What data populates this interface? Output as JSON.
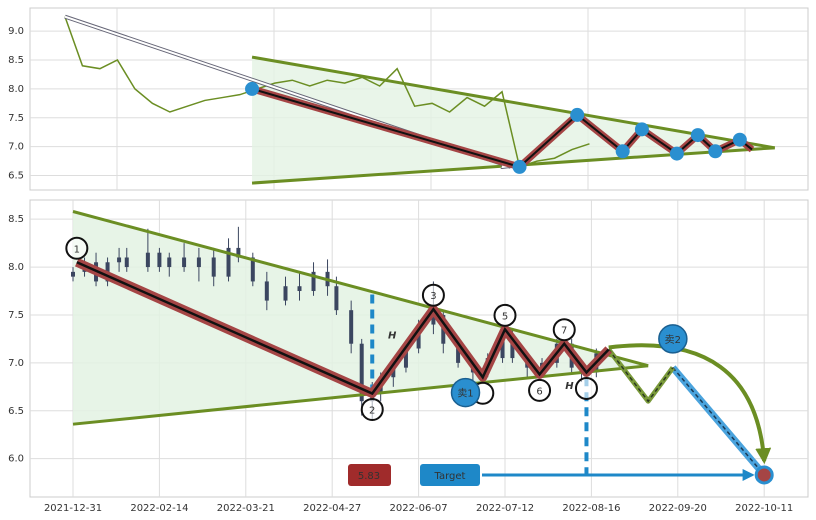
{
  "chart_data": [
    {
      "type": "line",
      "color": "#6b8e23",
      "values": [
        9.25,
        8.4,
        8.35,
        8.5,
        8.0,
        7.75,
        7.6,
        7.7,
        7.8,
        7.85,
        7.9,
        8.0,
        8.1,
        8.15,
        8.05,
        8.15,
        8.1,
        8.2,
        8.05,
        8.35,
        7.7,
        7.75,
        7.6,
        7.85,
        7.7,
        7.95,
        6.65,
        6.75,
        6.8,
        6.95,
        7.05
      ],
      "xlim": [
        -2,
        42.5
      ],
      "ylim": [
        6.25,
        9.4
      ],
      "yticks": [
        {
          "value": 6.5,
          "label": "6.5"
        },
        {
          "value": 7,
          "label": "7.0"
        },
        7.5,
        {
          "value": 8,
          "label": "8.0"
        },
        8.5,
        {
          "value": 9,
          "label": "9.0"
        }
      ],
      "grid": true,
      "triangle": {
        "upper": [
          {
            "x": 10.7,
            "y": 8.55
          },
          {
            "x": 40.6,
            "y": 6.98
          }
        ],
        "lower": [
          {
            "x": 10.7,
            "y": 6.37
          },
          {
            "x": 40.6,
            "y": 6.98
          }
        ]
      },
      "arrow": [
        {
          "x": 0,
          "y": 9.25
        },
        {
          "x": 25.5,
          "y": 6.65
        }
      ],
      "zigzag": [
        {
          "x": 10.7,
          "y": 8.0
        },
        {
          "x": 26.0,
          "y": 6.65
        },
        {
          "x": 29.3,
          "y": 7.55
        },
        {
          "x": 31.9,
          "y": 6.92
        },
        {
          "x": 33.0,
          "y": 7.3
        },
        {
          "x": 35.0,
          "y": 6.88
        },
        {
          "x": 36.2,
          "y": 7.2
        },
        {
          "x": 37.2,
          "y": 6.92
        },
        {
          "x": 38.6,
          "y": 7.12
        },
        {
          "x": 39.3,
          "y": 6.95
        }
      ]
    },
    {
      "type": "candlestick",
      "color": "#3b4660",
      "x": [
        "2021-12-31",
        "2022-01-06",
        "2022-01-12",
        "2022-01-18",
        "2022-01-24",
        "2022-01-28",
        "2022-02-08",
        "2022-02-14",
        "2022-02-18",
        "2022-02-24",
        "2022-03-02",
        "2022-03-08",
        "2022-03-14",
        "2022-03-18",
        "2022-03-24",
        "2022-03-30",
        "2022-04-07",
        "2022-04-13",
        "2022-04-19",
        "2022-04-25",
        "2022-04-29",
        "2022-05-06",
        "2022-05-11",
        "2022-05-16",
        "2022-05-20",
        "2022-05-26",
        "2022-06-01",
        "2022-06-07",
        "2022-06-13",
        "2022-06-17",
        "2022-06-23",
        "2022-06-29",
        "2022-07-05",
        "2022-07-11",
        "2022-07-15",
        "2022-07-21",
        "2022-07-27",
        "2022-08-02",
        "2022-08-08",
        "2022-08-12",
        "2022-08-18"
      ],
      "open": [
        7.9,
        7.95,
        8.05,
        7.85,
        8.05,
        8.1,
        8.0,
        8.15,
        8.0,
        8.1,
        8.0,
        8.1,
        7.9,
        8.2,
        8.1,
        7.85,
        7.65,
        7.8,
        7.75,
        7.95,
        7.8,
        7.55,
        7.2,
        6.6,
        6.7,
        6.85,
        6.95,
        7.15,
        7.4,
        7.5,
        7.2,
        7.0,
        6.9,
        7.05,
        7.3,
        7.05,
        6.95,
        7.0,
        7.2,
        6.95,
        6.9
      ],
      "high": [
        8.0,
        8.1,
        8.15,
        8.1,
        8.2,
        8.2,
        8.4,
        8.2,
        8.15,
        8.25,
        8.2,
        8.2,
        8.3,
        8.42,
        8.15,
        7.95,
        7.9,
        7.95,
        8.05,
        8.08,
        7.9,
        7.65,
        7.25,
        6.8,
        6.9,
        7.0,
        7.2,
        7.45,
        7.85,
        7.55,
        7.25,
        7.05,
        7.1,
        7.4,
        7.35,
        7.1,
        7.05,
        7.25,
        7.25,
        7.0,
        7.15
      ],
      "low": [
        7.85,
        7.9,
        7.8,
        7.8,
        7.95,
        7.95,
        7.95,
        7.95,
        7.9,
        7.95,
        7.85,
        7.8,
        7.85,
        8.05,
        7.8,
        7.55,
        7.6,
        7.65,
        7.7,
        7.7,
        7.5,
        7.1,
        6.45,
        6.4,
        6.6,
        6.75,
        6.9,
        7.1,
        7.3,
        7.1,
        6.95,
        6.8,
        6.85,
        7.0,
        7.0,
        6.85,
        6.85,
        6.95,
        6.9,
        6.8,
        6.85
      ],
      "close": [
        7.95,
        8.05,
        7.85,
        8.05,
        8.1,
        8.0,
        8.15,
        8.0,
        8.1,
        8.0,
        8.1,
        7.9,
        8.2,
        8.1,
        7.85,
        7.65,
        7.8,
        7.75,
        7.95,
        7.8,
        7.55,
        7.2,
        6.6,
        6.7,
        6.85,
        6.95,
        7.15,
        7.4,
        7.5,
        7.2,
        7.0,
        6.9,
        7.05,
        7.3,
        7.05,
        6.95,
        7.0,
        7.2,
        6.95,
        6.9,
        7.1
      ],
      "ylim": [
        5.6,
        8.7
      ],
      "yticks": [
        {
          "value": 6,
          "label": "6.0"
        },
        6.5,
        {
          "value": 7,
          "label": "7.0"
        },
        7.5,
        {
          "value": 8,
          "label": "8.0"
        },
        8.5
      ],
      "xticks": [
        "2021-12-31",
        "2022-02-14",
        "2022-03-21",
        "2022-04-27",
        "2022-06-07",
        "2022-07-12",
        "2022-08-16",
        "2022-09-20",
        "2022-10-11"
      ],
      "grid": true,
      "triangle": {
        "upper": [
          {
            "x": "2021-12-31",
            "y": 8.58
          },
          {
            "x": "2022-09-08",
            "y": 6.97
          }
        ],
        "lower": [
          {
            "x": "2021-12-31",
            "y": 6.36
          },
          {
            "x": "2022-09-08",
            "y": 6.97
          }
        ]
      },
      "pattern": [
        {
          "x": "2022-01-02",
          "y": 8.05,
          "label": 1
        },
        {
          "x": "2022-05-16",
          "y": 6.68,
          "label": 2
        },
        {
          "x": "2022-06-13",
          "y": 7.56,
          "label": 3
        },
        {
          "x": "2022-07-03",
          "y": 6.85,
          "label": null
        },
        {
          "x": "2022-07-12",
          "y": 7.35,
          "label": 5
        },
        {
          "x": "2022-07-26",
          "y": 6.88,
          "label": 6
        },
        {
          "x": "2022-08-05",
          "y": 7.2,
          "label": 7
        },
        {
          "x": "2022-08-14",
          "y": 6.9,
          "label": null
        }
      ],
      "projection": [
        {
          "x": "2022-08-23",
          "y": 7.14
        },
        {
          "x": "2022-09-08",
          "y": 6.6
        },
        {
          "x": "2022-09-18",
          "y": 6.95
        }
      ],
      "sells": [
        {
          "x": "2022-06-26",
          "y": 6.69,
          "label": "卖1"
        },
        {
          "x": "2022-09-18",
          "y": 7.25,
          "label": "卖2"
        }
      ],
      "heights": [
        {
          "x": "2022-05-16",
          "y1": 6.68,
          "y2": 7.72,
          "label": "H"
        },
        {
          "x": "2022-08-14",
          "y1": 6.85,
          "y2": 5.83,
          "label": "H"
        }
      ],
      "target": {
        "x": "2022-10-11",
        "value": 5.83,
        "label": "Target"
      }
    }
  ]
}
